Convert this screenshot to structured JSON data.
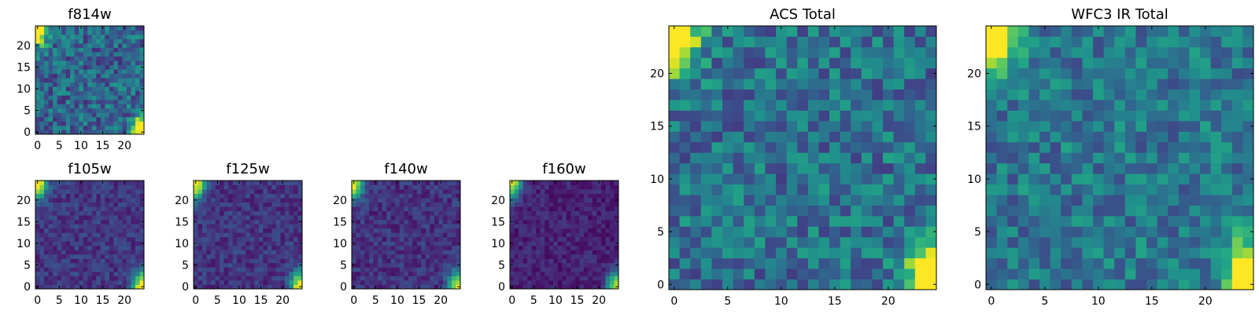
{
  "chart_data": [
    {
      "type": "heatmap",
      "title": "f814w",
      "grid_size": 25,
      "xlim": [
        -0.5,
        24.5
      ],
      "ylim": [
        -0.5,
        24.5
      ],
      "xticks": [
        0,
        5,
        10,
        15,
        20
      ],
      "yticks": [
        0,
        5,
        10,
        15,
        20
      ],
      "colormap": "viridis",
      "pattern": {
        "base": 0.33,
        "noise": 0.2,
        "seed": 11,
        "bright_corners": [
          "top-left",
          "bottom-right"
        ],
        "corner_strength": 1.0
      }
    },
    {
      "type": "heatmap",
      "title": "f105w",
      "grid_size": 25,
      "xlim": [
        -0.5,
        24.5
      ],
      "ylim": [
        -0.5,
        24.5
      ],
      "xticks": [
        0,
        5,
        10,
        15,
        20
      ],
      "yticks": [
        0,
        5,
        10,
        15,
        20
      ],
      "colormap": "viridis",
      "pattern": {
        "base": 0.17,
        "noise": 0.1,
        "seed": 23,
        "bright_corners": [
          "top-left",
          "bottom-right"
        ],
        "corner_strength": 0.85
      }
    },
    {
      "type": "heatmap",
      "title": "f125w",
      "grid_size": 25,
      "xlim": [
        -0.5,
        24.5
      ],
      "ylim": [
        -0.5,
        24.5
      ],
      "xticks": [
        0,
        5,
        10,
        15,
        20
      ],
      "yticks": [
        0,
        5,
        10,
        15,
        20
      ],
      "colormap": "viridis",
      "pattern": {
        "base": 0.16,
        "noise": 0.1,
        "seed": 37,
        "bright_corners": [
          "top-left",
          "bottom-right"
        ],
        "corner_strength": 0.85
      }
    },
    {
      "type": "heatmap",
      "title": "f140w",
      "grid_size": 25,
      "xlim": [
        -0.5,
        24.5
      ],
      "ylim": [
        -0.5,
        24.5
      ],
      "xticks": [
        0,
        5,
        10,
        15,
        20
      ],
      "yticks": [
        0,
        5,
        10,
        15,
        20
      ],
      "colormap": "viridis",
      "pattern": {
        "base": 0.15,
        "noise": 0.1,
        "seed": 41,
        "bright_corners": [
          "top-left",
          "bottom-right"
        ],
        "corner_strength": 0.85
      }
    },
    {
      "type": "heatmap",
      "title": "f160w",
      "grid_size": 25,
      "xlim": [
        -0.5,
        24.5
      ],
      "ylim": [
        -0.5,
        24.5
      ],
      "xticks": [
        0,
        5,
        10,
        15,
        20
      ],
      "yticks": [
        0,
        5,
        10,
        15,
        20
      ],
      "colormap": "viridis",
      "pattern": {
        "base": 0.1,
        "noise": 0.08,
        "seed": 53,
        "bright_corners": [
          "top-left",
          "bottom-right"
        ],
        "corner_strength": 0.85
      }
    },
    {
      "type": "heatmap",
      "title": "ACS Total",
      "grid_size": 25,
      "xlim": [
        -0.5,
        24.5
      ],
      "ylim": [
        -0.5,
        24.5
      ],
      "xticks": [
        0,
        5,
        10,
        15,
        20
      ],
      "yticks": [
        0,
        5,
        10,
        15,
        20
      ],
      "colormap": "viridis",
      "pattern": {
        "base": 0.38,
        "noise": 0.2,
        "seed": 67,
        "bright_corners": [
          "top-left",
          "bottom-right"
        ],
        "corner_strength": 1.0
      }
    },
    {
      "type": "heatmap",
      "title": "WFC3 IR Total",
      "grid_size": 25,
      "xlim": [
        -0.5,
        24.5
      ],
      "ylim": [
        -0.5,
        24.5
      ],
      "xticks": [
        0,
        5,
        10,
        15,
        20
      ],
      "yticks": [
        0,
        5,
        10,
        15,
        20
      ],
      "colormap": "viridis",
      "pattern": {
        "base": 0.4,
        "noise": 0.18,
        "seed": 79,
        "bright_corners": [
          "top-left",
          "bottom-right"
        ],
        "corner_strength": 1.0
      }
    }
  ]
}
